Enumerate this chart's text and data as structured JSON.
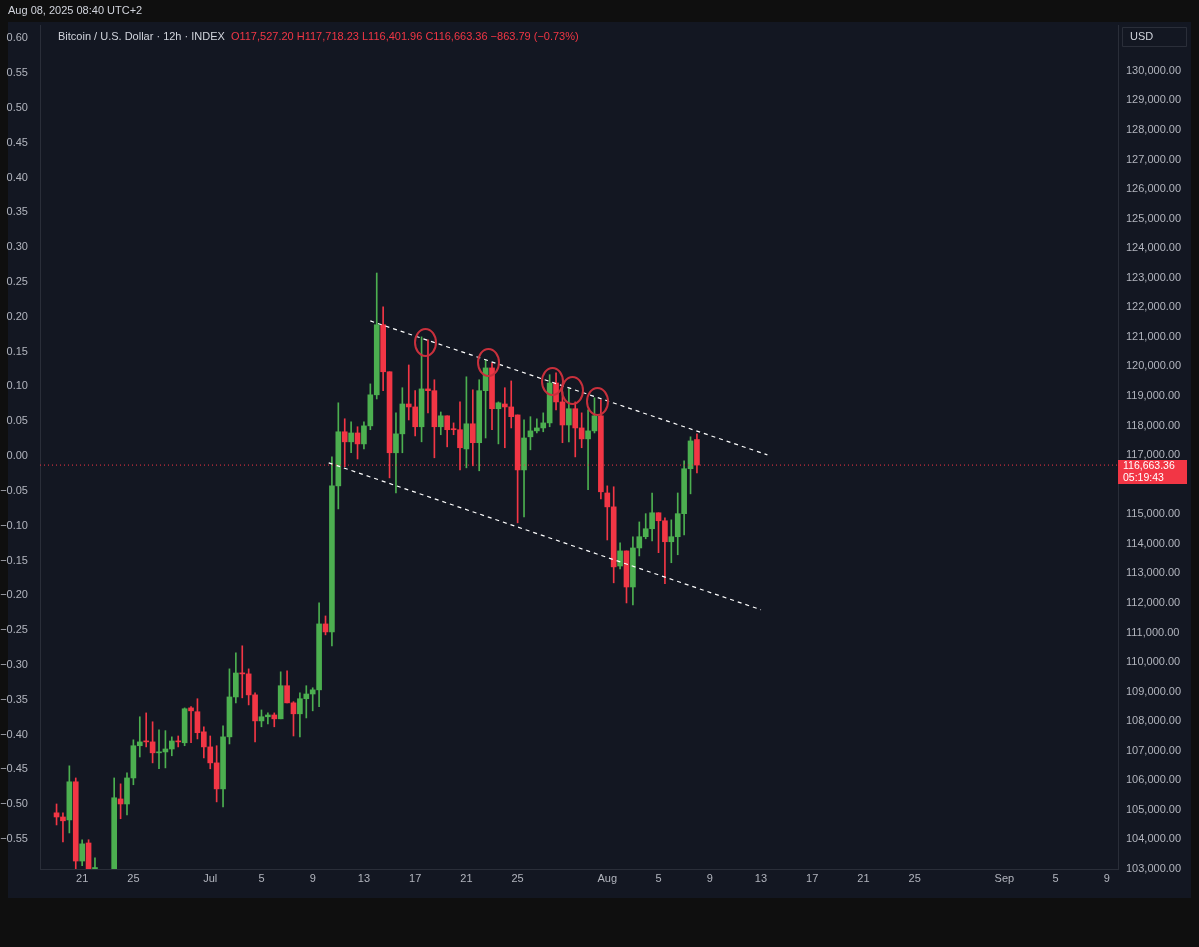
{
  "chart_data": {
    "type": "candlestick",
    "title": "Bitcoin / U.S. Dollar · 12h · INDEX",
    "subtitle": "O117,527.20 H117,718.23 L116,401.96 C116,663.36 −863.79 (−0.73%)",
    "ylabel": "USD",
    "annotations": [
      "Aug 08, 2025 08:40 UTC+2",
      "05:19:43"
    ],
    "x": [
      "2025-06-19T00:00",
      "2025-06-19T12:00",
      "2025-06-20T00:00",
      "2025-06-20T12:00",
      "2025-06-21T00:00",
      "2025-06-21T12:00",
      "2025-06-22T00:00",
      "2025-06-23T12:00",
      "2025-06-24T00:00",
      "2025-06-24T12:00",
      "2025-06-25T00:00",
      "2025-06-25T12:00",
      "2025-06-26T00:00",
      "2025-06-26T12:00",
      "2025-06-27T00:00",
      "2025-06-27T12:00",
      "2025-06-28T00:00",
      "2025-06-28T12:00",
      "2025-06-29T00:00",
      "2025-06-29T12:00",
      "2025-06-30T00:00",
      "2025-06-30T12:00",
      "2025-07-01T00:00",
      "2025-07-01T12:00",
      "2025-07-02T00:00",
      "2025-07-02T12:00",
      "2025-07-03T00:00",
      "2025-07-03T12:00",
      "2025-07-04T00:00",
      "2025-07-04T12:00",
      "2025-07-05T00:00",
      "2025-07-05T12:00",
      "2025-07-06T00:00",
      "2025-07-06T12:00",
      "2025-07-07T00:00",
      "2025-07-07T12:00",
      "2025-07-08T00:00",
      "2025-07-08T12:00",
      "2025-07-09T00:00",
      "2025-07-09T12:00",
      "2025-07-10T00:00",
      "2025-07-10T12:00",
      "2025-07-11T00:00",
      "2025-07-11T12:00",
      "2025-07-12T00:00",
      "2025-07-12T12:00",
      "2025-07-13T00:00",
      "2025-07-13T12:00",
      "2025-07-14T00:00",
      "2025-07-14T12:00",
      "2025-07-15T00:00",
      "2025-07-15T12:00",
      "2025-07-16T00:00",
      "2025-07-16T12:00",
      "2025-07-17T00:00",
      "2025-07-17T12:00",
      "2025-07-18T00:00",
      "2025-07-18T12:00",
      "2025-07-19T00:00",
      "2025-07-19T12:00",
      "2025-07-20T00:00",
      "2025-07-20T12:00",
      "2025-07-21T00:00",
      "2025-07-21T12:00",
      "2025-07-22T00:00",
      "2025-07-22T12:00",
      "2025-07-23T00:00",
      "2025-07-23T12:00",
      "2025-07-24T00:00",
      "2025-07-24T12:00",
      "2025-07-25T00:00",
      "2025-07-25T12:00",
      "2025-07-26T00:00",
      "2025-07-26T12:00",
      "2025-07-27T00:00",
      "2025-07-27T12:00",
      "2025-07-28T00:00",
      "2025-07-28T12:00",
      "2025-07-29T00:00",
      "2025-07-29T12:00",
      "2025-07-30T00:00",
      "2025-07-30T12:00",
      "2025-07-31T00:00",
      "2025-07-31T12:00",
      "2025-08-01T00:00",
      "2025-08-01T12:00",
      "2025-08-02T00:00",
      "2025-08-02T12:00",
      "2025-08-03T00:00",
      "2025-08-03T12:00",
      "2025-08-04T00:00",
      "2025-08-04T12:00",
      "2025-08-05T00:00",
      "2025-08-05T12:00",
      "2025-08-06T00:00",
      "2025-08-06T12:00",
      "2025-08-07T00:00",
      "2025-08-07T12:00",
      "2025-08-08T00:00"
    ],
    "ohlc": [
      [
        104900,
        105200,
        104490,
        104760
      ],
      [
        104760,
        104900,
        103920,
        104630
      ],
      [
        104660,
        106490,
        104220,
        105950
      ],
      [
        105950,
        106080,
        103000,
        103270
      ],
      [
        103270,
        103990,
        103110,
        103850
      ],
      [
        103880,
        103990,
        103000,
        103000
      ],
      [
        103000,
        103380,
        103000,
        103050
      ],
      [
        103000,
        106080,
        103000,
        105410
      ],
      [
        105370,
        105880,
        104700,
        105200
      ],
      [
        105200,
        106250,
        104830,
        106080
      ],
      [
        106080,
        107370,
        105850,
        107170
      ],
      [
        107170,
        108150,
        106790,
        107300
      ],
      [
        107330,
        108280,
        107130,
        107300
      ],
      [
        107300,
        107980,
        106590,
        106930
      ],
      [
        106930,
        107710,
        106390,
        106960
      ],
      [
        106960,
        107680,
        106420,
        107060
      ],
      [
        107060,
        107470,
        106830,
        107330
      ],
      [
        107330,
        107500,
        107130,
        107300
      ],
      [
        107270,
        108450,
        107170,
        108420
      ],
      [
        108450,
        108490,
        107270,
        108350
      ],
      [
        108320,
        108760,
        107400,
        107610
      ],
      [
        107640,
        107810,
        106760,
        107130
      ],
      [
        107130,
        107500,
        106390,
        106590
      ],
      [
        106590,
        107170,
        105270,
        105710
      ],
      [
        105710,
        107840,
        105100,
        107470
      ],
      [
        107470,
        109770,
        107230,
        108820
      ],
      [
        108820,
        110310,
        108620,
        109630
      ],
      [
        109630,
        110550,
        108790,
        109600
      ],
      [
        109600,
        109770,
        108550,
        108890
      ],
      [
        108890,
        108960,
        107300,
        108010
      ],
      [
        108010,
        108380,
        107810,
        108150
      ],
      [
        108150,
        108280,
        107910,
        108210
      ],
      [
        108210,
        108280,
        107810,
        108080
      ],
      [
        108080,
        109670,
        108080,
        109200
      ],
      [
        109200,
        109700,
        108620,
        108620
      ],
      [
        108620,
        108660,
        107500,
        108250
      ],
      [
        108250,
        108960,
        107470,
        108760
      ],
      [
        108760,
        109200,
        108110,
        108920
      ],
      [
        108920,
        109130,
        108350,
        109060
      ],
      [
        109060,
        112000,
        108490,
        111290
      ],
      [
        111290,
        111560,
        110920,
        111020
      ],
      [
        111020,
        116940,
        110550,
        115960
      ],
      [
        115960,
        118770,
        115180,
        117790
      ],
      [
        117790,
        118230,
        116610,
        117450
      ],
      [
        117450,
        118130,
        117080,
        117750
      ],
      [
        117750,
        117960,
        116870,
        117380
      ],
      [
        117380,
        118130,
        117210,
        117990
      ],
      [
        117990,
        119410,
        117860,
        119040
      ],
      [
        119040,
        123160,
        118900,
        121410
      ],
      [
        121410,
        122020,
        119180,
        119820
      ],
      [
        119820,
        119820,
        116230,
        117080
      ],
      [
        117080,
        118430,
        115720,
        117720
      ],
      [
        117720,
        119280,
        117080,
        118730
      ],
      [
        118730,
        120050,
        118190,
        118630
      ],
      [
        118630,
        119180,
        117650,
        117960
      ],
      [
        117960,
        121000,
        117450,
        119240
      ],
      [
        119240,
        120900,
        118430,
        119180
      ],
      [
        119180,
        119550,
        116910,
        117960
      ],
      [
        117960,
        118460,
        117690,
        118330
      ],
      [
        118330,
        118330,
        117280,
        117860
      ],
      [
        117890,
        118090,
        117690,
        117860
      ],
      [
        117860,
        118800,
        116500,
        117250
      ],
      [
        117210,
        119650,
        116570,
        118060
      ],
      [
        118060,
        119210,
        116640,
        117420
      ],
      [
        117420,
        119550,
        116470,
        119180
      ],
      [
        119180,
        120220,
        117580,
        119950
      ],
      [
        119950,
        120120,
        117860,
        118570
      ],
      [
        118570,
        118800,
        117380,
        118770
      ],
      [
        118730,
        119280,
        117250,
        118630
      ],
      [
        118630,
        119510,
        117920,
        118300
      ],
      [
        118360,
        118360,
        114710,
        116500
      ],
      [
        116500,
        118190,
        114910,
        117580
      ],
      [
        117620,
        118300,
        117180,
        117820
      ],
      [
        117820,
        118230,
        117750,
        117920
      ],
      [
        117920,
        118430,
        117790,
        118090
      ],
      [
        118090,
        119720,
        117960,
        119440
      ],
      [
        119440,
        119780,
        118530,
        118800
      ],
      [
        118800,
        119140,
        117420,
        118020
      ],
      [
        118020,
        119240,
        117450,
        118570
      ],
      [
        118570,
        118800,
        116940,
        117920
      ],
      [
        117920,
        118430,
        117250,
        117550
      ],
      [
        117550,
        118530,
        115830,
        117820
      ],
      [
        117820,
        118940,
        117750,
        118330
      ],
      [
        118330,
        118870,
        115520,
        115760
      ],
      [
        115720,
        115960,
        114130,
        115250
      ],
      [
        115250,
        115930,
        112680,
        113220
      ],
      [
        113250,
        114030,
        113150,
        113760
      ],
      [
        113760,
        113760,
        112000,
        112540
      ],
      [
        112540,
        114240,
        111930,
        113860
      ],
      [
        113860,
        114740,
        113590,
        114240
      ],
      [
        114240,
        115020,
        114170,
        114510
      ],
      [
        114510,
        115720,
        114100,
        115050
      ],
      [
        115050,
        115050,
        113700,
        114780
      ],
      [
        114780,
        114880,
        112650,
        114070
      ],
      [
        114070,
        114810,
        113360,
        114240
      ],
      [
        114240,
        115720,
        113630,
        115020
      ],
      [
        115020,
        116810,
        114300,
        116540
      ],
      [
        116540,
        117620,
        115690,
        117480
      ],
      [
        117527.2,
        117718.23,
        116401.96,
        116663.36
      ]
    ],
    "colors": [
      "#f23645",
      "#f23645",
      "#4caf50",
      "#f23645",
      "#4caf50",
      "#f23645",
      "#4caf50",
      "#4caf50",
      "#f23645",
      "#4caf50",
      "#4caf50",
      "#4caf50",
      "#f23645",
      "#f23645",
      "#4caf50",
      "#4caf50",
      "#4caf50",
      "#f23645",
      "#4caf50",
      "#f23645",
      "#f23645",
      "#f23645",
      "#f23645",
      "#f23645",
      "#4caf50",
      "#4caf50",
      "#4caf50",
      "#f23645",
      "#f23645",
      "#f23645",
      "#4caf50",
      "#4caf50",
      "#f23645",
      "#4caf50",
      "#f23645",
      "#f23645",
      "#4caf50",
      "#4caf50",
      "#4caf50",
      "#4caf50",
      "#f23645",
      "#4caf50",
      "#4caf50",
      "#f23645",
      "#4caf50",
      "#f23645",
      "#4caf50",
      "#4caf50",
      "#4caf50",
      "#f23645",
      "#f23645",
      "#4caf50",
      "#4caf50",
      "#f23645",
      "#f23645",
      "#4caf50",
      "#f23645",
      "#f23645",
      "#4caf50",
      "#f23645",
      "#f23645",
      "#f23645",
      "#4caf50",
      "#f23645",
      "#4caf50",
      "#4caf50",
      "#f23645",
      "#4caf50",
      "#f23645",
      "#f23645",
      "#f23645",
      "#4caf50",
      "#4caf50",
      "#4caf50",
      "#4caf50",
      "#4caf50",
      "#f23645",
      "#f23645",
      "#4caf50",
      "#f23645",
      "#f23645",
      "#4caf50",
      "#4caf50",
      "#f23645",
      "#f23645",
      "#f23645",
      "#4caf50",
      "#f23645",
      "#4caf50",
      "#4caf50",
      "#4caf50",
      "#4caf50",
      "#f23645",
      "#f23645",
      "#4caf50",
      "#4caf50",
      "#4caf50",
      "#4caf50",
      "#f23645"
    ],
    "series": [
      {
        "type": "line",
        "color": "#ffffff",
        "line_style": "dashed",
        "marker": "none",
        "x": [
          "2025-07-13T12:00",
          "2025-08-13T12:00"
        ],
        "values": [
          121540,
          117010
        ]
      },
      {
        "type": "line",
        "color": "#ffffff",
        "line_style": "dashed",
        "marker": "none",
        "x": [
          "2025-07-10T06:00",
          "2025-08-13T00:00"
        ],
        "values": [
          116740,
          111770
        ]
      }
    ],
    "xlim": [
      "2025-06-17T17:00",
      "2025-09-09T21:00"
    ],
    "xticks": [
      {
        "value": "2025-06-21",
        "label": "21"
      },
      {
        "value": "2025-06-25",
        "label": "25"
      },
      {
        "value": "2025-07-01",
        "label": "Jul"
      },
      {
        "value": "2025-07-05",
        "label": "5"
      },
      {
        "value": "2025-07-09",
        "label": "9"
      },
      {
        "value": "2025-07-13",
        "label": "13"
      },
      {
        "value": "2025-07-17",
        "label": "17"
      },
      {
        "value": "2025-07-21",
        "label": "21"
      },
      {
        "value": "2025-07-25",
        "label": "25"
      },
      {
        "value": "2025-08-01",
        "label": "Aug"
      },
      {
        "value": "2025-08-05",
        "label": "5"
      },
      {
        "value": "2025-08-09",
        "label": "9"
      },
      {
        "value": "2025-08-13",
        "label": "13"
      },
      {
        "value": "2025-08-17",
        "label": "17"
      },
      {
        "value": "2025-08-21",
        "label": "21"
      },
      {
        "value": "2025-08-25",
        "label": "25"
      },
      {
        "value": "2025-09-01",
        "label": "Sep"
      },
      {
        "value": "2025-09-05",
        "label": "5"
      },
      {
        "value": "2025-09-09",
        "label": "9"
      }
    ],
    "ylim": [
      103000,
      131550
    ],
    "yticks": [
      {
        "value": 103000,
        "label": "103,000.00"
      },
      {
        "value": 104000,
        "label": "104,000.00"
      },
      {
        "value": 105000,
        "label": "105,000.00"
      },
      {
        "value": 106000,
        "label": "106,000.00"
      },
      {
        "value": 107000,
        "label": "107,000.00"
      },
      {
        "value": 108000,
        "label": "108,000.00"
      },
      {
        "value": 109000,
        "label": "109,000.00"
      },
      {
        "value": 110000,
        "label": "110,000.00"
      },
      {
        "value": 111000,
        "label": "111,000.00"
      },
      {
        "value": 112000,
        "label": "112,000.00"
      },
      {
        "value": 113000,
        "label": "113,000.00"
      },
      {
        "value": 114000,
        "label": "114,000.00"
      },
      {
        "value": 115000,
        "label": "115,000.00"
      },
      {
        "value": 117000,
        "label": "117,000.00"
      },
      {
        "value": 118000,
        "label": "118,000.00"
      },
      {
        "value": 119000,
        "label": "119,000.00"
      },
      {
        "value": 120000,
        "label": "120,000.00"
      },
      {
        "value": 121000,
        "label": "121,000.00"
      },
      {
        "value": 122000,
        "label": "122,000.00"
      },
      {
        "value": 123000,
        "label": "123,000.00"
      },
      {
        "value": 124000,
        "label": "124,000.00"
      },
      {
        "value": 125000,
        "label": "125,000.00"
      },
      {
        "value": 126000,
        "label": "126,000.00"
      },
      {
        "value": 127000,
        "label": "127,000.00"
      },
      {
        "value": 128000,
        "label": "128,000.00"
      },
      {
        "value": 129000,
        "label": "129,000.00"
      },
      {
        "value": 130000,
        "label": "130,000.00"
      }
    ],
    "y2lim": [
      -0.593,
      0.619
    ],
    "y2ticks": [
      {
        "value": 0.6,
        "label": "0.60"
      },
      {
        "value": 0.55,
        "label": "0.55"
      },
      {
        "value": 0.5,
        "label": "0.50"
      },
      {
        "value": 0.45,
        "label": "0.45"
      },
      {
        "value": 0.4,
        "label": "0.40"
      },
      {
        "value": 0.35,
        "label": "0.35"
      },
      {
        "value": 0.3,
        "label": "0.30"
      },
      {
        "value": 0.25,
        "label": "0.25"
      },
      {
        "value": 0.2,
        "label": "0.20"
      },
      {
        "value": 0.15,
        "label": "0.15"
      },
      {
        "value": 0.1,
        "label": "0.10"
      },
      {
        "value": 0.05,
        "label": "0.05"
      },
      {
        "value": 0,
        "label": "0.00"
      },
      {
        "value": -0.05,
        "label": "−0.05"
      },
      {
        "value": -0.1,
        "label": "−0.10"
      },
      {
        "value": -0.15,
        "label": "−0.15"
      },
      {
        "value": -0.2,
        "label": "−0.20"
      },
      {
        "value": -0.25,
        "label": "−0.25"
      },
      {
        "value": -0.3,
        "label": "−0.30"
      },
      {
        "value": -0.35,
        "label": "−0.35"
      },
      {
        "value": -0.4,
        "label": "−0.40"
      },
      {
        "value": -0.45,
        "label": "−0.45"
      },
      {
        "value": -0.5,
        "label": "−0.50"
      },
      {
        "value": -0.55,
        "label": "−0.55"
      }
    ],
    "ref_lines": [
      {
        "axis": "y",
        "value": 116663.36,
        "label": "116,663.36",
        "color": "#f23645"
      }
    ],
    "grid": false,
    "legend": false
  }
}
